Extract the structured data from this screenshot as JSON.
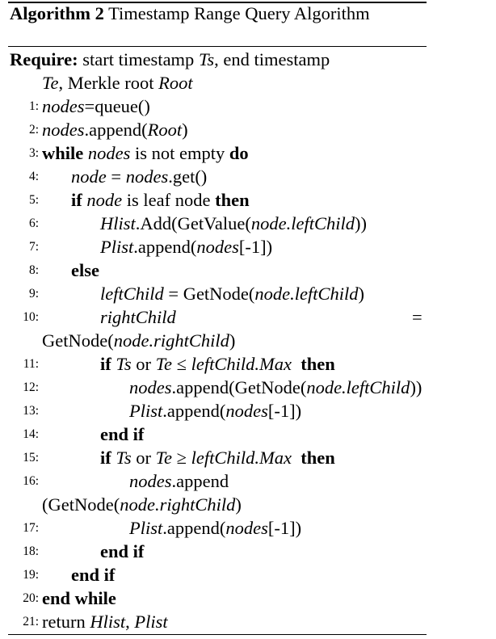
{
  "algorithm": {
    "label": "Algorithm 2",
    "title": "Timestamp Range Query Algorithm",
    "require": {
      "keyword": "Require:",
      "text1": "start timestamp",
      "var1": "Ts",
      "text2": ", end timestamp",
      "var2": "Te",
      "text3": ", Merkle root",
      "var3": "Root"
    },
    "lines": [
      {
        "no": "1:",
        "parts": [
          "nodes",
          "=queue()"
        ]
      },
      {
        "no": "2:",
        "parts": [
          "nodes",
          ".append(",
          "Root",
          ")"
        ]
      },
      {
        "no": "3:",
        "parts": [
          "while",
          "nodes",
          "is not empty",
          "do"
        ]
      },
      {
        "no": "4:",
        "parts": [
          "node",
          " = ",
          "nodes",
          ".get()"
        ]
      },
      {
        "no": "5:",
        "parts": [
          "if",
          "node",
          "is leaf node",
          "then"
        ]
      },
      {
        "no": "6:",
        "parts": [
          "Hlist",
          ".Add(GetValue(",
          "node.leftChild",
          "))"
        ]
      },
      {
        "no": "7:",
        "parts": [
          "Plist",
          ".append(",
          "nodes",
          "[-1])"
        ]
      },
      {
        "no": "8:",
        "parts": [
          "else"
        ]
      },
      {
        "no": "9:",
        "parts": [
          "leftChild",
          " = GetNode(",
          "node.leftChild",
          ")"
        ]
      },
      {
        "no": "10:",
        "parts": [
          "rightChild",
          "="
        ],
        "continuation": [
          "GetNode(",
          "node.rightChild",
          ")"
        ]
      },
      {
        "no": "11:",
        "parts": [
          "if",
          "Ts",
          "or",
          "Te",
          " ≤ ",
          "leftChild.Max",
          "then"
        ]
      },
      {
        "no": "12:",
        "parts": [
          "nodes",
          ".append(GetNode(",
          "node.leftChild",
          "))"
        ]
      },
      {
        "no": "13:",
        "parts": [
          "Plist",
          ".append(",
          "nodes",
          "[-1])"
        ]
      },
      {
        "no": "14:",
        "parts": [
          "end if"
        ]
      },
      {
        "no": "15:",
        "parts": [
          "if",
          "Ts",
          "or",
          "Te",
          " ≥ ",
          "leftChild.Max",
          "then"
        ]
      },
      {
        "no": "16:",
        "parts": [
          "nodes",
          ".append"
        ],
        "continuation": [
          "(GetNode(",
          "node.rightChild",
          ")"
        ]
      },
      {
        "no": "17:",
        "parts": [
          "Plist",
          ".append(",
          "nodes",
          "[-1])"
        ]
      },
      {
        "no": "18:",
        "parts": [
          "end if"
        ]
      },
      {
        "no": "19:",
        "parts": [
          "end if"
        ]
      },
      {
        "no": "20:",
        "parts": [
          "end while"
        ]
      },
      {
        "no": "21:",
        "parts": [
          "return",
          "Hlist",
          ", ",
          "Plist"
        ]
      }
    ]
  }
}
